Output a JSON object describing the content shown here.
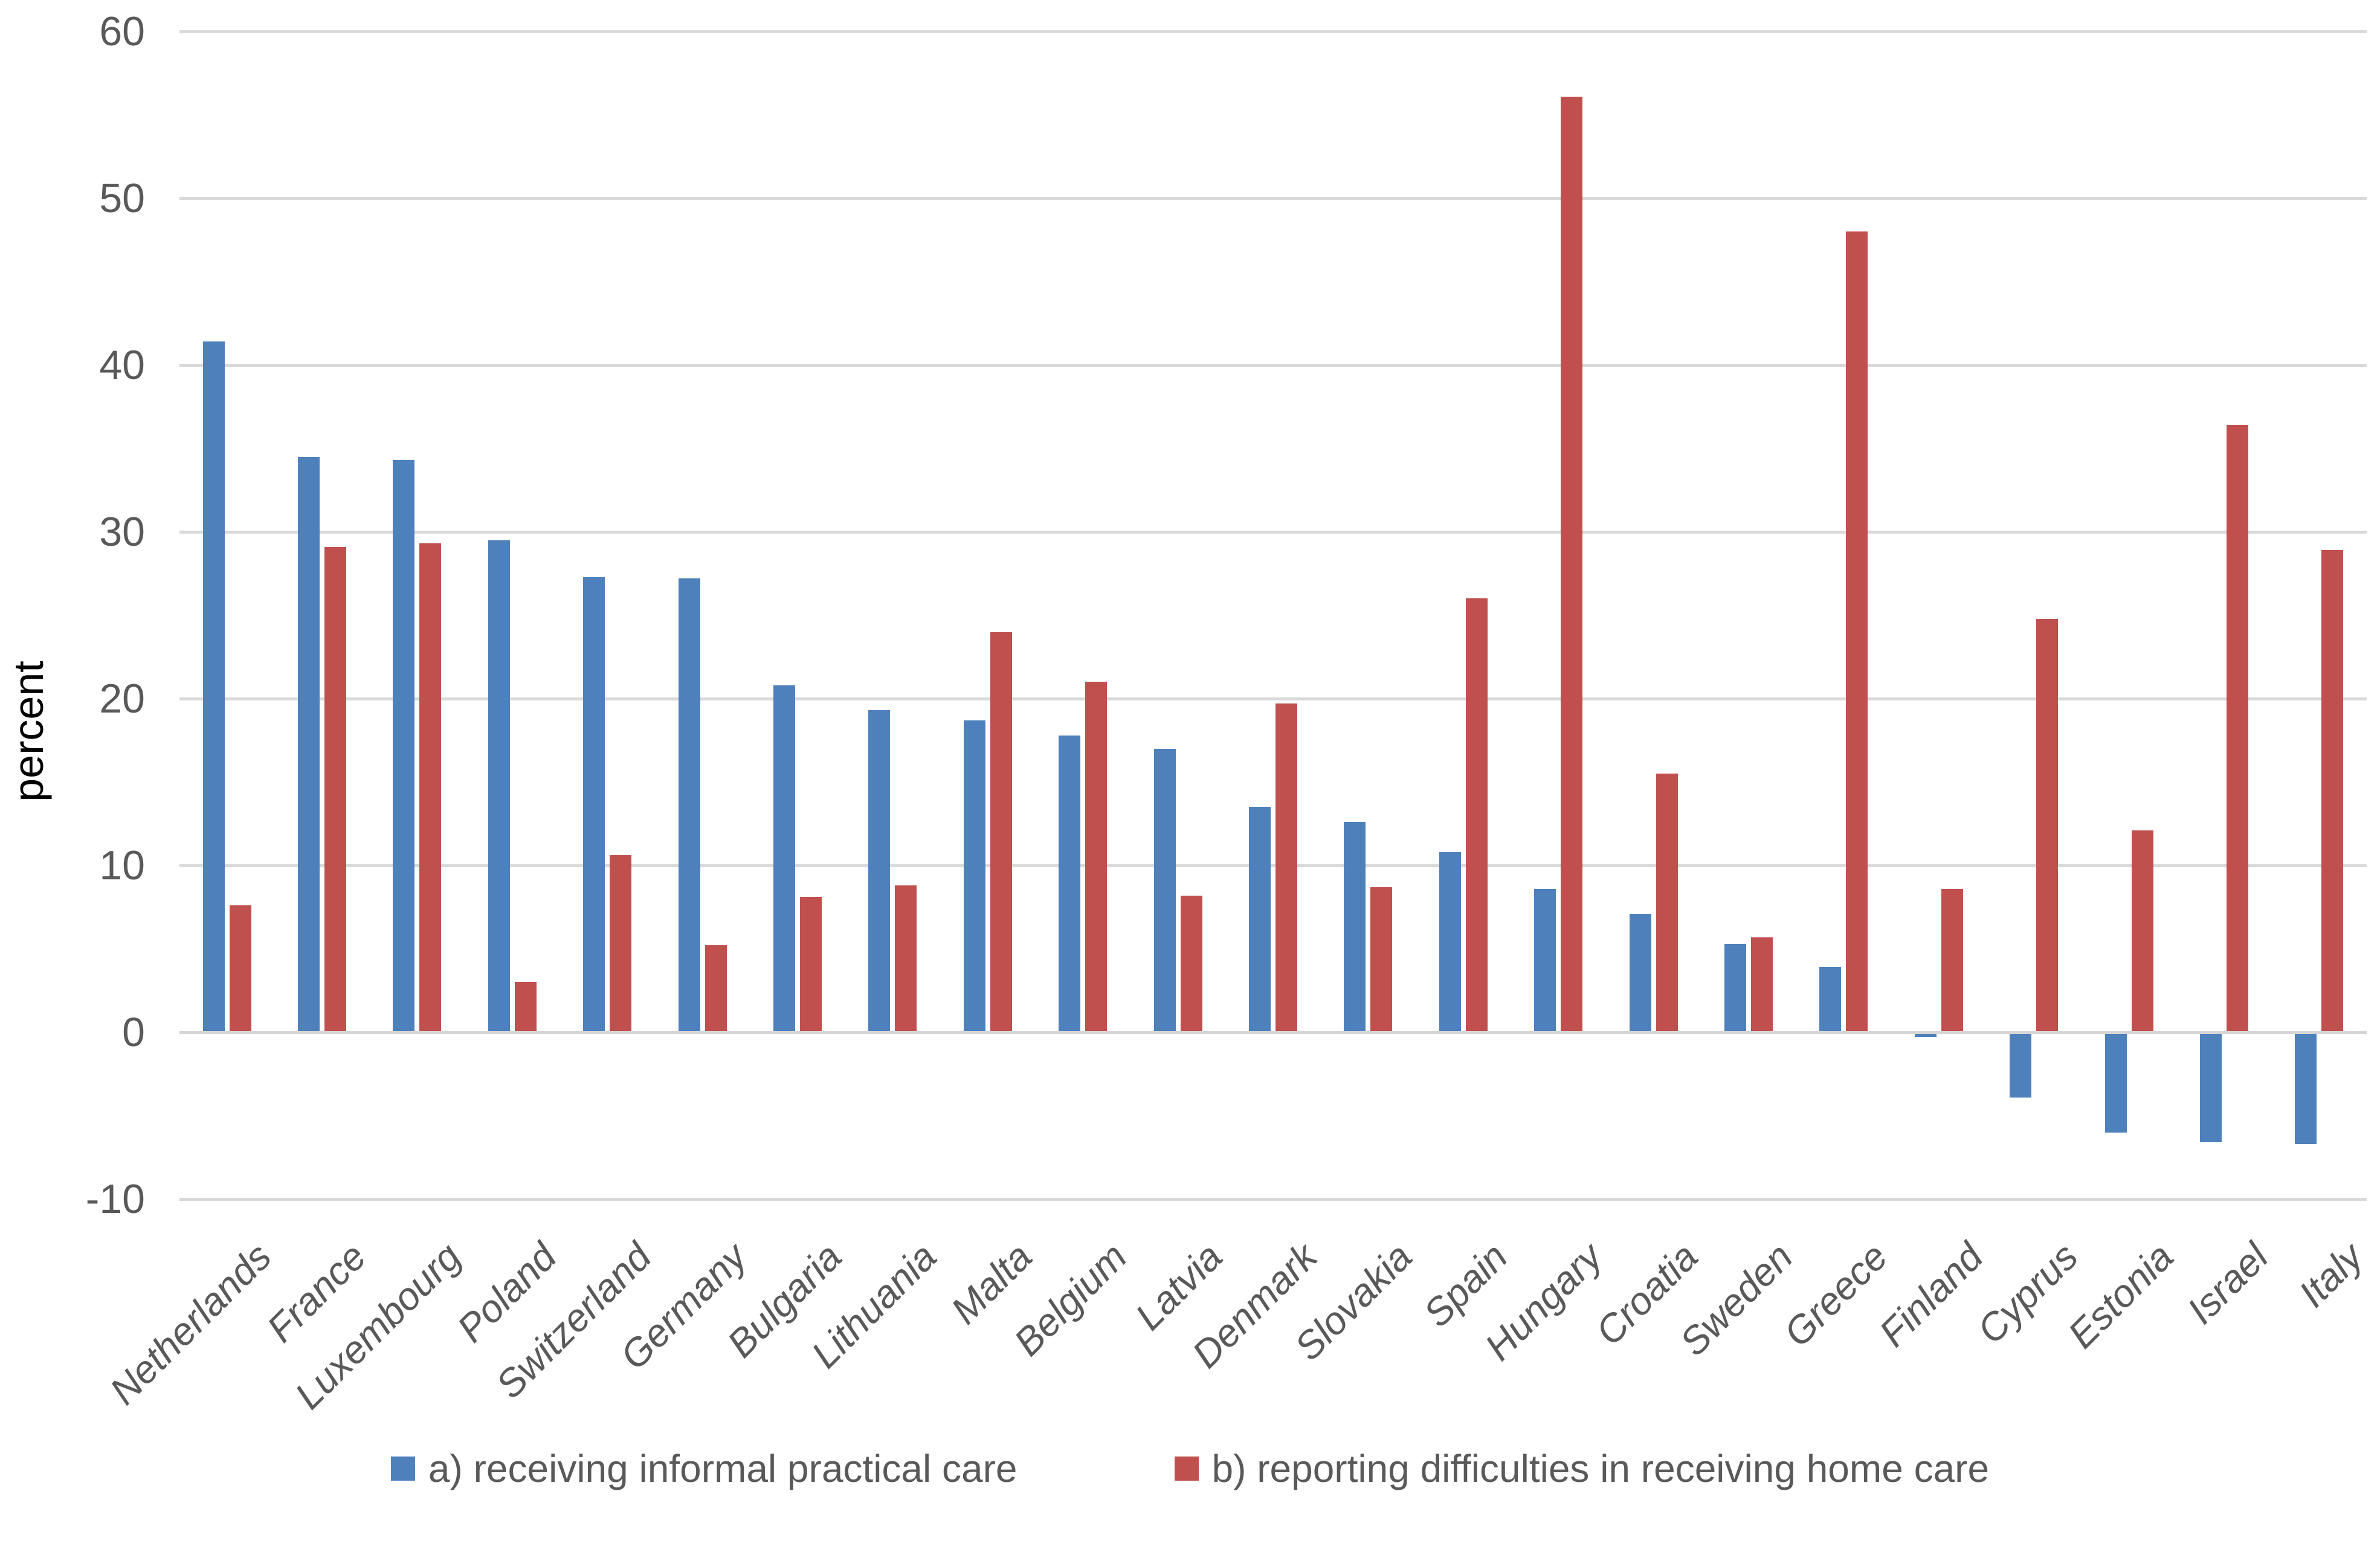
{
  "chart_data": {
    "type": "bar",
    "title": "",
    "ylabel": "percent",
    "xlabel": "",
    "grid": "horizontal",
    "legend_position": "bottom",
    "ylim": [
      -10,
      60
    ],
    "ytick_interval": 10,
    "yticks": [
      60,
      50,
      40,
      30,
      20,
      10,
      0,
      -10
    ],
    "categories": [
      "Netherlands",
      "France",
      "Luxembourg",
      "Poland",
      "Switzerland",
      "Germany",
      "Bulgaria",
      "Lithuania",
      "Malta",
      "Belgium",
      "Latvia",
      "Denmark",
      "Slovakia",
      "Spain",
      "Hungary",
      "Croatia",
      "Sweden",
      "Greece",
      "Finland",
      "Cyprus",
      "Estonia",
      "Israel",
      "Italy"
    ],
    "series": [
      {
        "name": "a) receiving informal practical care",
        "color": "#4E81BC",
        "values": [
          41.4,
          34.5,
          34.3,
          29.5,
          27.3,
          27.2,
          20.8,
          19.3,
          18.7,
          17.8,
          17.0,
          13.5,
          12.6,
          10.8,
          8.6,
          7.1,
          5.3,
          3.9,
          -0.3,
          -3.9,
          -6.0,
          -6.6,
          -6.7
        ]
      },
      {
        "name": "b) reporting difficulties in receiving home care",
        "color": "#C0504D",
        "values": [
          7.6,
          29.1,
          29.3,
          3.0,
          10.6,
          5.2,
          8.1,
          8.8,
          24.0,
          21.0,
          8.2,
          19.7,
          8.7,
          26.0,
          56.1,
          15.5,
          5.7,
          48.0,
          8.6,
          24.8,
          12.1,
          36.4,
          28.9
        ]
      }
    ]
  },
  "colors": {
    "gridline": "#D9D9D9",
    "axis_line": "#D6D6D6",
    "tick_label": "#595959",
    "category_label": "#595959",
    "axis_title": "#000000",
    "legend_text": "#595959",
    "background": "#FFFFFF"
  }
}
